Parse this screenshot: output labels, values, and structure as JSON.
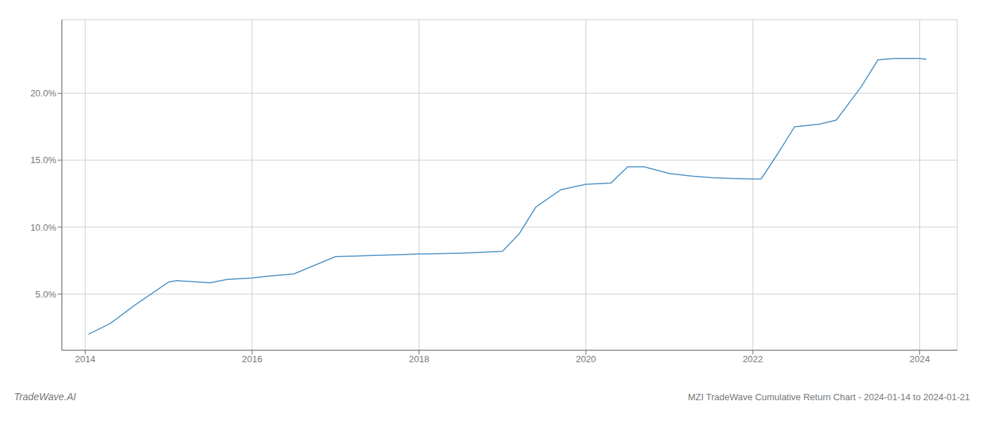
{
  "chart_data": {
    "type": "line",
    "title": "MZI TradeWave Cumulative Return Chart - 2024-01-14 to 2024-01-21",
    "annotations": [
      "TradeWave.AI"
    ],
    "color": "#4a90c4",
    "x": [
      2014.04,
      2014.3,
      2014.6,
      2015.0,
      2015.1,
      2015.5,
      2015.7,
      2016.0,
      2016.2,
      2016.5,
      2017.0,
      2017.3,
      2017.5,
      2017.8,
      2018.0,
      2018.1,
      2018.5,
      2018.7,
      2019.0,
      2019.2,
      2019.4,
      2019.7,
      2020.0,
      2020.3,
      2020.5,
      2020.7,
      2021.0,
      2021.3,
      2021.5,
      2021.7,
      2022.0,
      2022.1,
      2022.3,
      2022.5,
      2022.8,
      2023.0,
      2023.3,
      2023.5,
      2023.7,
      2024.0,
      2024.08
    ],
    "values": [
      2.0,
      2.8,
      4.2,
      5.9,
      6.0,
      5.85,
      6.1,
      6.2,
      6.35,
      6.5,
      7.8,
      7.85,
      7.9,
      7.95,
      8.0,
      8.0,
      8.05,
      8.1,
      8.2,
      9.5,
      11.5,
      12.8,
      13.2,
      13.3,
      14.5,
      14.5,
      14.0,
      13.8,
      13.7,
      13.65,
      13.6,
      13.6,
      15.5,
      17.5,
      17.7,
      18.0,
      20.5,
      22.5,
      22.6,
      22.6,
      22.55
    ],
    "xlim": [
      2013.72,
      2024.45
    ],
    "ylim": [
      0.8,
      25.5
    ],
    "xticks": [
      2014,
      2016,
      2018,
      2020,
      2022,
      2024
    ],
    "yticks": [
      {
        "value": 5.0,
        "label": "5.0%"
      },
      {
        "value": 10.0,
        "label": "10.0%"
      },
      {
        "value": 15.0,
        "label": "15.0%"
      },
      {
        "value": 20.0,
        "label": "20.0%"
      }
    ],
    "grid": true
  }
}
